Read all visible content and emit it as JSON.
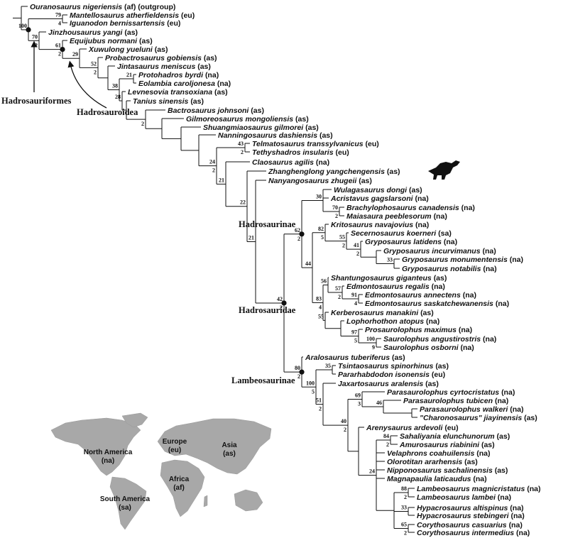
{
  "taxa": [
    {
      "name": "Ouranosaurus nigeriensis",
      "region": "(af)  (outgroup)"
    },
    {
      "name": "Mantellosaurus atherfieldensis",
      "region": "(eu)"
    },
    {
      "name": "Iguanodon bernissartensis",
      "region": "(eu)"
    },
    {
      "name": "Jinzhousaurus yangi",
      "region": "(as)"
    },
    {
      "name": "Equijubus normani",
      "region": "(as)"
    },
    {
      "name": "Xuwulong yueluni",
      "region": "(as)"
    },
    {
      "name": "Probactrosaurus gobiensis",
      "region": "(as)"
    },
    {
      "name": "Jintasaurus meniscus",
      "region": "(as)"
    },
    {
      "name": "Protohadros byrdi",
      "region": "(na)"
    },
    {
      "name": "Eolambia caroljonesa",
      "region": "(na)"
    },
    {
      "name": "Levnesovia transoxiana",
      "region": "(as)"
    },
    {
      "name": "Tanius sinensis",
      "region": "(as)"
    },
    {
      "name": "Bactrosaurus johnsoni",
      "region": "(as)"
    },
    {
      "name": "Gilmoreosaurus mongoliensis",
      "region": "(as)"
    },
    {
      "name": "Shuangmiaosaurus gilmorei",
      "region": "(as)"
    },
    {
      "name": "Nanningosaurus dashiensis",
      "region": "(as)"
    },
    {
      "name": "Telmatosaurus transsylvanicus",
      "region": "(eu)"
    },
    {
      "name": "Tethyshadros insularis",
      "region": "(eu)"
    },
    {
      "name": "Claosaurus agilis",
      "region": "(na)"
    },
    {
      "name": "Zhanghenglong yangchengensis",
      "region": "(as)"
    },
    {
      "name": "Nanyangosaurus zhugeii",
      "region": "(as)"
    },
    {
      "name": "Wulagasaurus dongi",
      "region": "(as)"
    },
    {
      "name": "Acristavus gagslarsoni",
      "region": "(na)"
    },
    {
      "name": "Brachylophosaurus canadensis",
      "region": "(na)"
    },
    {
      "name": "Maiasaura peeblesorum",
      "region": "(na)"
    },
    {
      "name": "Kritosaurus navajovius",
      "region": "(na)"
    },
    {
      "name": "Secernosaurus koerneri",
      "region": "(sa)"
    },
    {
      "name": "Gryposaurus latidens",
      "region": "(na)"
    },
    {
      "name": "Gryposaurus incurvimanus",
      "region": "(na)"
    },
    {
      "name": "Gryposaurus monumentensis",
      "region": "(na)"
    },
    {
      "name": "Gryposaurus notabilis",
      "region": "(na)"
    },
    {
      "name": "Shantungosaurus giganteus",
      "region": "(as)"
    },
    {
      "name": "Edmontosaurus regalis",
      "region": "(na)"
    },
    {
      "name": "Edmontosaurus annectens",
      "region": "(na)"
    },
    {
      "name": "Edmontosaurus saskatchewanensis",
      "region": "(na)"
    },
    {
      "name": "Kerberosaurus manakini",
      "region": "(as)"
    },
    {
      "name": "Lophorhothon atopus",
      "region": "(na)"
    },
    {
      "name": "Prosaurolophus maximus",
      "region": "(na)"
    },
    {
      "name": "Saurolophus angustirostris",
      "region": "(na)"
    },
    {
      "name": "Saurolophus osborni",
      "region": "(na)"
    },
    {
      "name": "Aralosaurus tuberiferus",
      "region": "(as)"
    },
    {
      "name": "Tsintaosaurus spinorhinus",
      "region": "(as)"
    },
    {
      "name": "Pararhabdodon isonensis",
      "region": "(eu)"
    },
    {
      "name": "Jaxartosaurus aralensis",
      "region": "(as)"
    },
    {
      "name": "Parasaurolophus cyrtocristatus",
      "region": "(na)"
    },
    {
      "name": "Parasaurolophus tubicen",
      "region": "(na)"
    },
    {
      "name": "Parasaurolophus walkeri",
      "region": "(na)"
    },
    {
      "name": "\"Charonosaurus\" jiayinensis",
      "region": "(as)"
    },
    {
      "name": "Arenysaurus ardevoli",
      "region": "(eu)"
    },
    {
      "name": "Sahaliyania elunchunorum",
      "region": "(as)"
    },
    {
      "name": "Amurosaurus riabinini",
      "region": "(as)"
    },
    {
      "name": "Velaphrons coahuilensis",
      "region": "(na)"
    },
    {
      "name": "Olorotitan ararhensis",
      "region": "(as)"
    },
    {
      "name": "Nipponosaurus sachalinensis",
      "region": "(as)"
    },
    {
      "name": "Magnapaulia laticaudus",
      "region": "(na)"
    },
    {
      "name": "Lambeosaurus magnicristatus",
      "region": "(na)"
    },
    {
      "name": "Lambeosaurus lambei",
      "region": "(na)"
    },
    {
      "name": "Hypacrosaurus altispinus",
      "region": "(na)"
    },
    {
      "name": "Hypacrosaurus stebingeri",
      "region": "(na)"
    },
    {
      "name": "Corythosaurus casuarius",
      "region": "(na)"
    },
    {
      "name": "Corythosaurus intermedius",
      "region": "(na)"
    }
  ],
  "nodes": [
    {
      "support": 79,
      "decay": 4
    },
    {
      "support": 100
    },
    {
      "support": 70,
      "decay": 2
    },
    {
      "support": 61,
      "decay": 2
    },
    {
      "support": 29
    },
    {
      "support": 52,
      "decay": 2
    },
    {
      "support": 21
    },
    {
      "support": 38
    },
    {
      "support": 28
    },
    {
      "decay": 2
    },
    {
      "support": 43,
      "decay": 2
    },
    {
      "support": 24,
      "decay": 2
    },
    {
      "support": 21
    },
    {
      "support": 22
    },
    {
      "support": 21
    },
    {
      "support": 30
    },
    {
      "support": 70,
      "decay": 2
    },
    {
      "support": 62,
      "decay": 2
    },
    {
      "support": 82,
      "decay": 5
    },
    {
      "support": 55,
      "decay": 2
    },
    {
      "support": 41,
      "decay": 2
    },
    {
      "support": 33
    },
    {
      "support": 44
    },
    {
      "support": 56
    },
    {
      "support": 57,
      "decay": 2
    },
    {
      "support": 91,
      "decay": 4
    },
    {
      "support": 83,
      "decay": 4
    },
    {
      "support": 55
    },
    {
      "support": 97,
      "decay": 5
    },
    {
      "support": 100,
      "decay": 9
    },
    {
      "support": 42,
      "decay": 2
    },
    {
      "support": 35
    },
    {
      "support": 80,
      "decay": 2
    },
    {
      "support": 100,
      "decay": 5
    },
    {
      "support": 51,
      "decay": 2
    },
    {
      "support": 69,
      "decay": 3
    },
    {
      "support": 46
    },
    {
      "support": 40,
      "decay": 2
    },
    {
      "support": 84,
      "decay": 2
    },
    {
      "support": 24
    },
    {
      "support": 88,
      "decay": 2
    },
    {
      "support": 33
    },
    {
      "support": 65,
      "decay": 2
    }
  ],
  "clades": [
    "Hadrosauriformes",
    "Hadrosauroidea",
    "Hadrosaurinae",
    "Hadrosauridae",
    "Lambeosaurinae"
  ],
  "map": [
    {
      "name": "North America",
      "code": "(na)"
    },
    {
      "name": "Europe",
      "code": "(eu)"
    },
    {
      "name": "Asia",
      "code": "(as)"
    },
    {
      "name": "Africa",
      "code": "(af)"
    },
    {
      "name": "South America",
      "code": "(sa)"
    }
  ]
}
